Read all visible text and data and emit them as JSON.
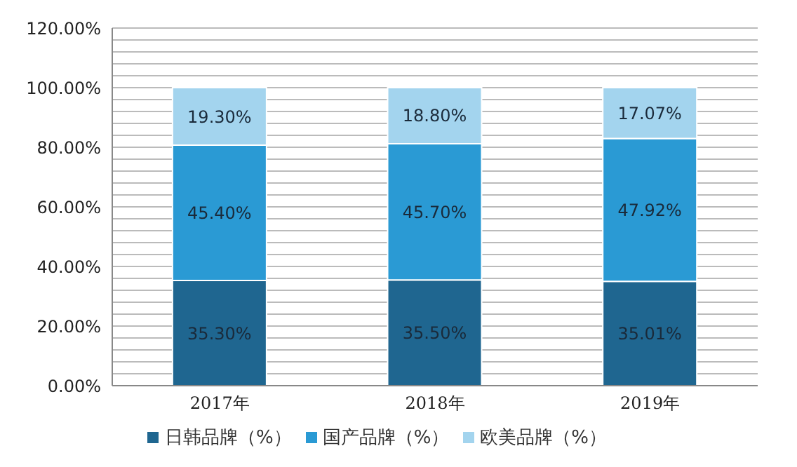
{
  "chart_data": {
    "type": "bar",
    "stacked": true,
    "categories": [
      "2017年",
      "2018年",
      "2019年"
    ],
    "series": [
      {
        "name": "日韩品牌（%）",
        "color": "#1f6690",
        "values": [
          35.3,
          35.5,
          35.01
        ],
        "value_labels": [
          "35.30%",
          "35.50%",
          "35.01%"
        ]
      },
      {
        "name": "国产品牌（%）",
        "color": "#2a9ad4",
        "values": [
          45.4,
          45.7,
          47.92
        ],
        "value_labels": [
          "45.40%",
          "45.70%",
          "47.92%"
        ]
      },
      {
        "name": "欧美品牌（%）",
        "color": "#a3d4ee",
        "values": [
          19.3,
          18.8,
          17.07
        ],
        "value_labels": [
          "19.30%",
          "18.80%",
          "17.07%"
        ]
      }
    ],
    "ylim": [
      0,
      120
    ],
    "yticks": [
      {
        "value": 0,
        "label": "0.00%"
      },
      {
        "value": 4,
        "label": null
      },
      {
        "value": 8,
        "label": null
      },
      {
        "value": 12,
        "label": null
      },
      {
        "value": 16,
        "label": null
      },
      {
        "value": 20,
        "label": "20.00%"
      },
      {
        "value": 24,
        "label": null
      },
      {
        "value": 28,
        "label": null
      },
      {
        "value": 32,
        "label": null
      },
      {
        "value": 36,
        "label": null
      },
      {
        "value": 40,
        "label": "40.00%"
      },
      {
        "value": 44,
        "label": null
      },
      {
        "value": 48,
        "label": null
      },
      {
        "value": 52,
        "label": null
      },
      {
        "value": 56,
        "label": null
      },
      {
        "value": 60,
        "label": "60.00%"
      },
      {
        "value": 64,
        "label": null
      },
      {
        "value": 68,
        "label": null
      },
      {
        "value": 72,
        "label": null
      },
      {
        "value": 76,
        "label": null
      },
      {
        "value": 80,
        "label": "80.00%"
      },
      {
        "value": 84,
        "label": null
      },
      {
        "value": 88,
        "label": null
      },
      {
        "value": 92,
        "label": null
      },
      {
        "value": 96,
        "label": null
      },
      {
        "value": 100,
        "label": "100.00%"
      },
      {
        "value": 104,
        "label": null
      },
      {
        "value": 108,
        "label": null
      },
      {
        "value": 112,
        "label": null
      },
      {
        "value": 116,
        "label": null
      },
      {
        "value": 120,
        "label": "120.00%"
      }
    ],
    "grid": "y",
    "legend": "bottom"
  }
}
